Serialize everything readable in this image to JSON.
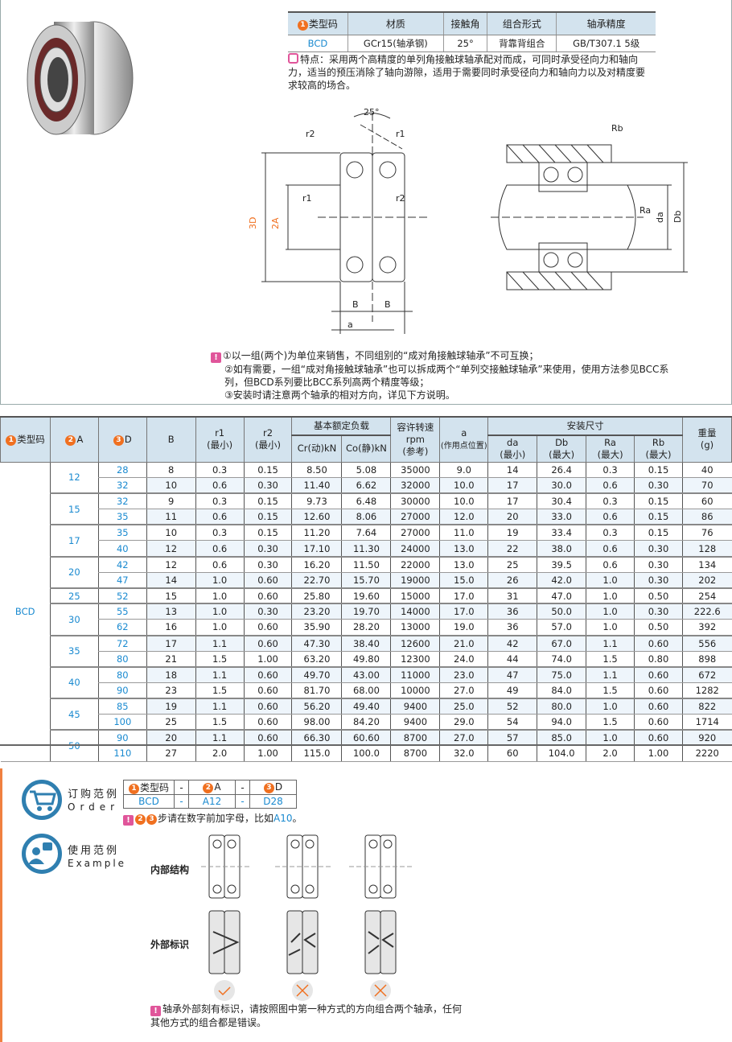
{
  "spec_table": {
    "headers": [
      "类型码",
      "材质",
      "接触角",
      "组合形式",
      "轴承精度"
    ],
    "header_num": "1",
    "row": [
      "BCD",
      "GCr15(轴承钢)",
      "25°",
      "背靠背组合",
      "GB/T307.1 5级"
    ]
  },
  "feature": "特点：采用两个高精度的单列角接触球轴承配对而成，可同时承受径向力和轴向力，适当的预压消除了轴向游隙，适用于需要同时承受径向力和轴向力以及对精度要求较高的场合。",
  "diagram": {
    "angle": "25°",
    "labels": {
      "r1": "r1",
      "r2": "r2",
      "D": "3D",
      "A": "2A",
      "B": "B",
      "a": "a",
      "Rb": "Rb",
      "Ra": "Ra",
      "da": "da",
      "Db": "Db"
    }
  },
  "notes": [
    "①以一组(两个)为单位来销售，不同组别的“成对角接触球轴承”不可互换；",
    "②如有需要，一组“成对角接触球轴承”也可以拆成两个“单列交接触球轴承”来使用，使用方法参见BCC系",
    "列，但BCD系列要比BCC系列高两个精度等级；",
    "③安装时请注意两个轴承的相对方向，详见下方说明。"
  ],
  "main_table": {
    "h": {
      "type": "类型码",
      "A": "A",
      "D": "D",
      "B": "B",
      "r1": "r1",
      "r2": "r2",
      "min": "(最小)",
      "max": "(最大)",
      "load": "基本额定负载",
      "cr": "Cr(动)kN",
      "co": "Co(静)kN",
      "speed": "容许转速",
      "rpm": "rpm",
      "ref": "(参考)",
      "a": "a",
      "a_sub": "(作用点位置)",
      "install": "安装尺寸",
      "da": "da",
      "Db": "Db",
      "Ra": "Ra",
      "Rb": "Rb",
      "weight": "重量",
      "g": "(g)"
    },
    "type_value": "BCD",
    "groups": [
      {
        "A": "12",
        "rows": [
          [
            "28",
            "8",
            "0.3",
            "0.15",
            "8.50",
            "5.08",
            "35000",
            "9.0",
            "14",
            "26.4",
            "0.3",
            "0.15",
            "40"
          ],
          [
            "32",
            "10",
            "0.6",
            "0.30",
            "11.40",
            "6.62",
            "32000",
            "10.0",
            "17",
            "30.0",
            "0.6",
            "0.30",
            "70"
          ]
        ]
      },
      {
        "A": "15",
        "rows": [
          [
            "32",
            "9",
            "0.3",
            "0.15",
            "9.73",
            "6.48",
            "30000",
            "10.0",
            "17",
            "30.4",
            "0.3",
            "0.15",
            "60"
          ],
          [
            "35",
            "11",
            "0.6",
            "0.15",
            "12.60",
            "8.06",
            "27000",
            "12.0",
            "20",
            "33.0",
            "0.6",
            "0.15",
            "86"
          ]
        ]
      },
      {
        "A": "17",
        "rows": [
          [
            "35",
            "10",
            "0.3",
            "0.15",
            "11.20",
            "7.64",
            "27000",
            "11.0",
            "19",
            "33.4",
            "0.3",
            "0.15",
            "76"
          ],
          [
            "40",
            "12",
            "0.6",
            "0.30",
            "17.10",
            "11.30",
            "24000",
            "13.0",
            "22",
            "38.0",
            "0.6",
            "0.30",
            "128"
          ]
        ]
      },
      {
        "A": "20",
        "rows": [
          [
            "42",
            "12",
            "0.6",
            "0.30",
            "16.20",
            "11.50",
            "22000",
            "13.0",
            "25",
            "39.5",
            "0.6",
            "0.30",
            "134"
          ],
          [
            "47",
            "14",
            "1.0",
            "0.60",
            "22.70",
            "15.70",
            "19000",
            "15.0",
            "26",
            "42.0",
            "1.0",
            "0.30",
            "202"
          ]
        ]
      },
      {
        "A": "25",
        "rows": [
          [
            "52",
            "15",
            "1.0",
            "0.60",
            "25.80",
            "19.60",
            "15000",
            "17.0",
            "31",
            "47.0",
            "1.0",
            "0.50",
            "254"
          ]
        ]
      },
      {
        "A": "30",
        "rows": [
          [
            "55",
            "13",
            "1.0",
            "0.30",
            "23.20",
            "19.70",
            "14000",
            "17.0",
            "36",
            "50.0",
            "1.0",
            "0.30",
            "222.6"
          ],
          [
            "62",
            "16",
            "1.0",
            "0.60",
            "35.90",
            "28.20",
            "13000",
            "19.0",
            "36",
            "57.0",
            "1.0",
            "0.50",
            "392"
          ]
        ]
      },
      {
        "A": "35",
        "rows": [
          [
            "72",
            "17",
            "1.1",
            "0.60",
            "47.30",
            "38.40",
            "12600",
            "21.0",
            "42",
            "67.0",
            "1.1",
            "0.60",
            "556"
          ],
          [
            "80",
            "21",
            "1.5",
            "1.00",
            "63.20",
            "49.80",
            "12300",
            "24.0",
            "44",
            "74.0",
            "1.5",
            "0.80",
            "898"
          ]
        ]
      },
      {
        "A": "40",
        "rows": [
          [
            "80",
            "18",
            "1.1",
            "0.60",
            "49.70",
            "43.00",
            "11000",
            "23.0",
            "47",
            "75.0",
            "1.1",
            "0.60",
            "672"
          ],
          [
            "90",
            "23",
            "1.5",
            "0.60",
            "81.70",
            "68.00",
            "10000",
            "27.0",
            "49",
            "84.0",
            "1.5",
            "0.60",
            "1282"
          ]
        ]
      },
      {
        "A": "45",
        "rows": [
          [
            "85",
            "19",
            "1.1",
            "0.60",
            "56.20",
            "49.40",
            "9400",
            "25.0",
            "52",
            "80.0",
            "1.0",
            "0.60",
            "822"
          ],
          [
            "100",
            "25",
            "1.5",
            "0.60",
            "98.00",
            "84.20",
            "9400",
            "29.0",
            "54",
            "94.0",
            "1.5",
            "0.60",
            "1714"
          ]
        ]
      },
      {
        "A": "50",
        "rows": [
          [
            "90",
            "20",
            "1.1",
            "0.60",
            "66.30",
            "60.60",
            "8700",
            "27.0",
            "57",
            "85.0",
            "1.0",
            "0.60",
            "920"
          ],
          [
            "110",
            "27",
            "2.0",
            "1.00",
            "115.0",
            "100.0",
            "8700",
            "32.0",
            "60",
            "104.0",
            "2.0",
            "1.00",
            "2220"
          ]
        ]
      }
    ]
  },
  "order": {
    "title": "订购范例",
    "subtitle": "Order",
    "headers": [
      "类型码",
      "-",
      "A",
      "-",
      "D"
    ],
    "values": [
      "BCD",
      "-",
      "A12",
      "-",
      "D28"
    ],
    "note_pre": "步请在数字前加字母，比如",
    "note_example": "A10",
    "note_end": "。"
  },
  "example": {
    "title": "使用范例",
    "subtitle": "Example",
    "inner": "内部结构",
    "outer": "外部标识",
    "results": [
      "correct",
      "wrong",
      "wrong"
    ],
    "note": "轴承外部刻有标识，请按照图中第一种方式的方向组合两个轴承，任何其他方式的组合都是错误。"
  },
  "colors": {
    "accent": "#1a8ad0",
    "header_bg": "#d3e3ee",
    "number_badge": "#f07020",
    "note_badge": "#e0559a",
    "icon": "#2f7fb0"
  }
}
